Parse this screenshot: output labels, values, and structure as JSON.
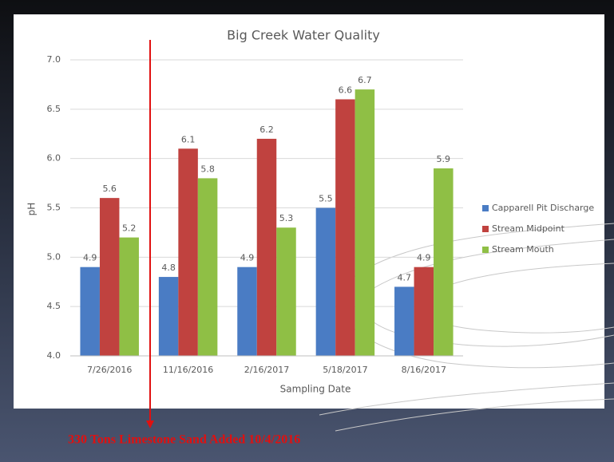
{
  "chart_data": {
    "type": "bar",
    "title": "Big Creek Water Quality",
    "x_label": "Sampling Date",
    "y_label": "pH",
    "categories": [
      "7/26/2016",
      "11/16/2016",
      "2/16/2017",
      "5/18/2017",
      "8/16/2017"
    ],
    "series": [
      {
        "name": "Capparell Pit Discharge",
        "color": "#4a7cc4",
        "values": [
          4.9,
          4.8,
          4.9,
          5.5,
          4.7
        ]
      },
      {
        "name": "Stream Midpoint",
        "color": "#c0423f",
        "values": [
          5.6,
          6.1,
          6.2,
          6.6,
          4.9
        ]
      },
      {
        "name": "Stream Mouth",
        "color": "#8fbf45",
        "values": [
          5.2,
          5.8,
          5.3,
          6.7,
          5.9
        ]
      }
    ],
    "ylim": [
      4.0,
      7.0
    ],
    "yticks": [
      {
        "value": 4,
        "label": "4.0"
      },
      4.5,
      {
        "value": 5,
        "label": "5.0"
      },
      5.5,
      {
        "value": 6,
        "label": "6.0"
      },
      6.5,
      {
        "value": 7,
        "label": "7.0"
      }
    ],
    "grid": true,
    "legend": "right",
    "annotation": "330 Tons Limestone Sand Added 10/4/2016"
  }
}
